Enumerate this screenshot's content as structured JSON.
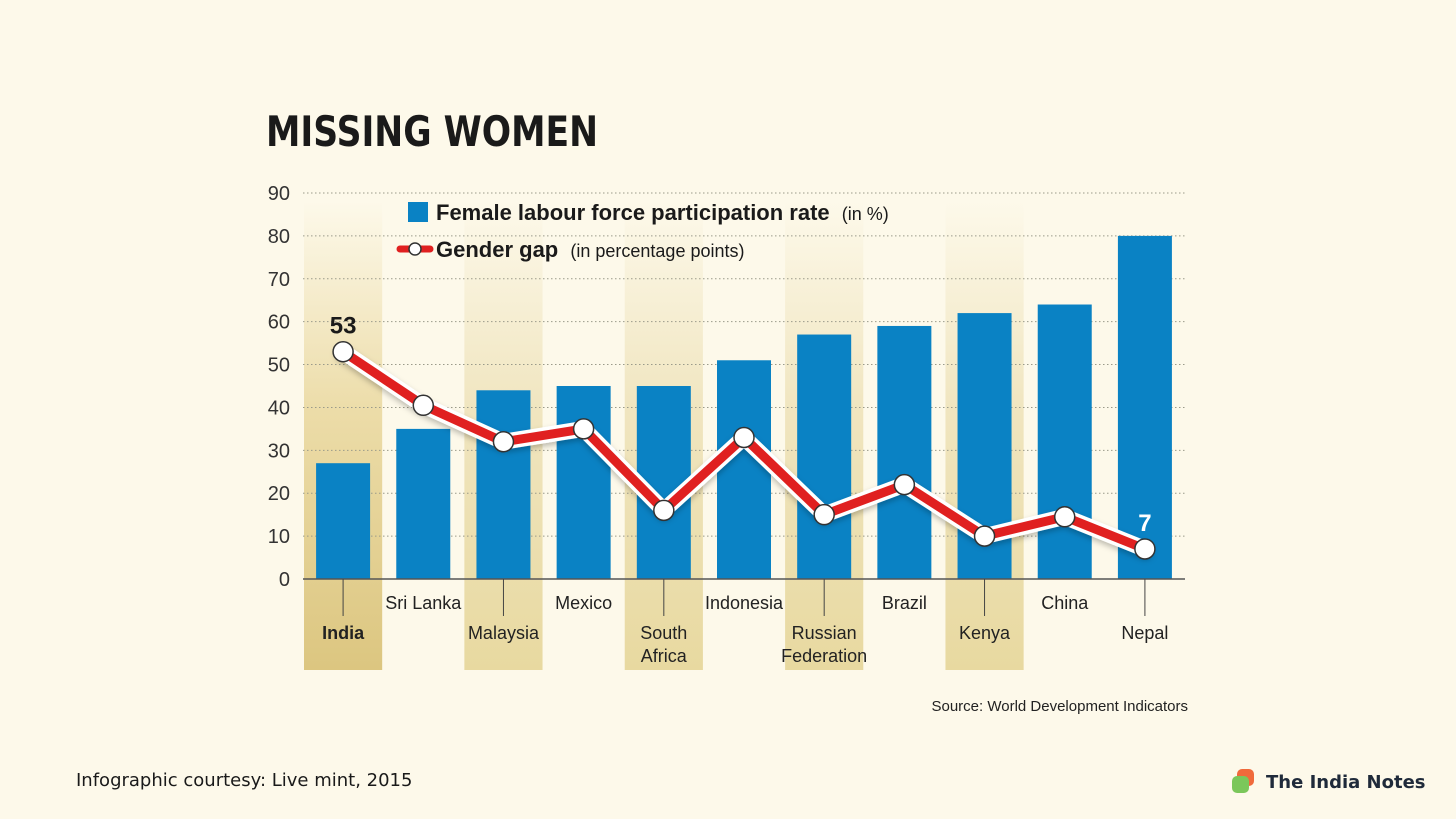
{
  "chart_data": {
    "type": "bar",
    "title": "MISSING WOMEN",
    "categories": [
      "India",
      "Sri Lanka",
      "Malaysia",
      "Mexico",
      "South Africa",
      "Indonesia",
      "Russian Federation",
      "Brazil",
      "Kenya",
      "China",
      "Nepal"
    ],
    "category_lines": [
      [
        "India"
      ],
      [
        "Sri Lanka"
      ],
      [
        "Malaysia"
      ],
      [
        "Mexico"
      ],
      [
        "South",
        "Africa"
      ],
      [
        "Indonesia"
      ],
      [
        "Russian",
        "Federation"
      ],
      [
        "Brazil"
      ],
      [
        "Kenya"
      ],
      [
        "China"
      ],
      [
        "Nepal"
      ]
    ],
    "highlighted_categories": [
      "India",
      "Malaysia",
      "South Africa",
      "Russian Federation",
      "Kenya"
    ],
    "series": [
      {
        "name": "Female labour force participation rate",
        "name_suffix": "(in %)",
        "type": "bar",
        "color": "#0a82c4",
        "values": [
          27,
          35,
          44,
          45,
          45,
          51,
          57,
          59,
          62,
          64,
          80
        ]
      },
      {
        "name": "Gender gap",
        "name_suffix": "(in percentage points)",
        "type": "line",
        "color": "#e02020",
        "values": [
          53,
          40.5,
          32,
          35,
          16,
          33,
          15,
          22,
          10,
          14.5,
          7
        ]
      }
    ],
    "data_labels": [
      {
        "series": 1,
        "index": 0,
        "text": "53",
        "color": "#1a1a1a"
      },
      {
        "series": 1,
        "index": 10,
        "text": "7",
        "color": "#ffffff"
      }
    ],
    "yticks": [
      0,
      10,
      20,
      30,
      40,
      50,
      60,
      70,
      80,
      90
    ],
    "ylim": [
      0,
      90
    ],
    "grid": "horizontal dotted",
    "legend_position": "top-left",
    "source": "Source: World Development Indicators",
    "colors": {
      "background": "#fdf9ea",
      "highlight_band": "#efe3b8",
      "highlight_band_dark": "#e2cf8e",
      "bar": "#0a82c4",
      "line": "#e02020"
    }
  },
  "footer": {
    "credit": "Infographic courtesy: Live mint, 2015",
    "brand": "The India Notes"
  }
}
